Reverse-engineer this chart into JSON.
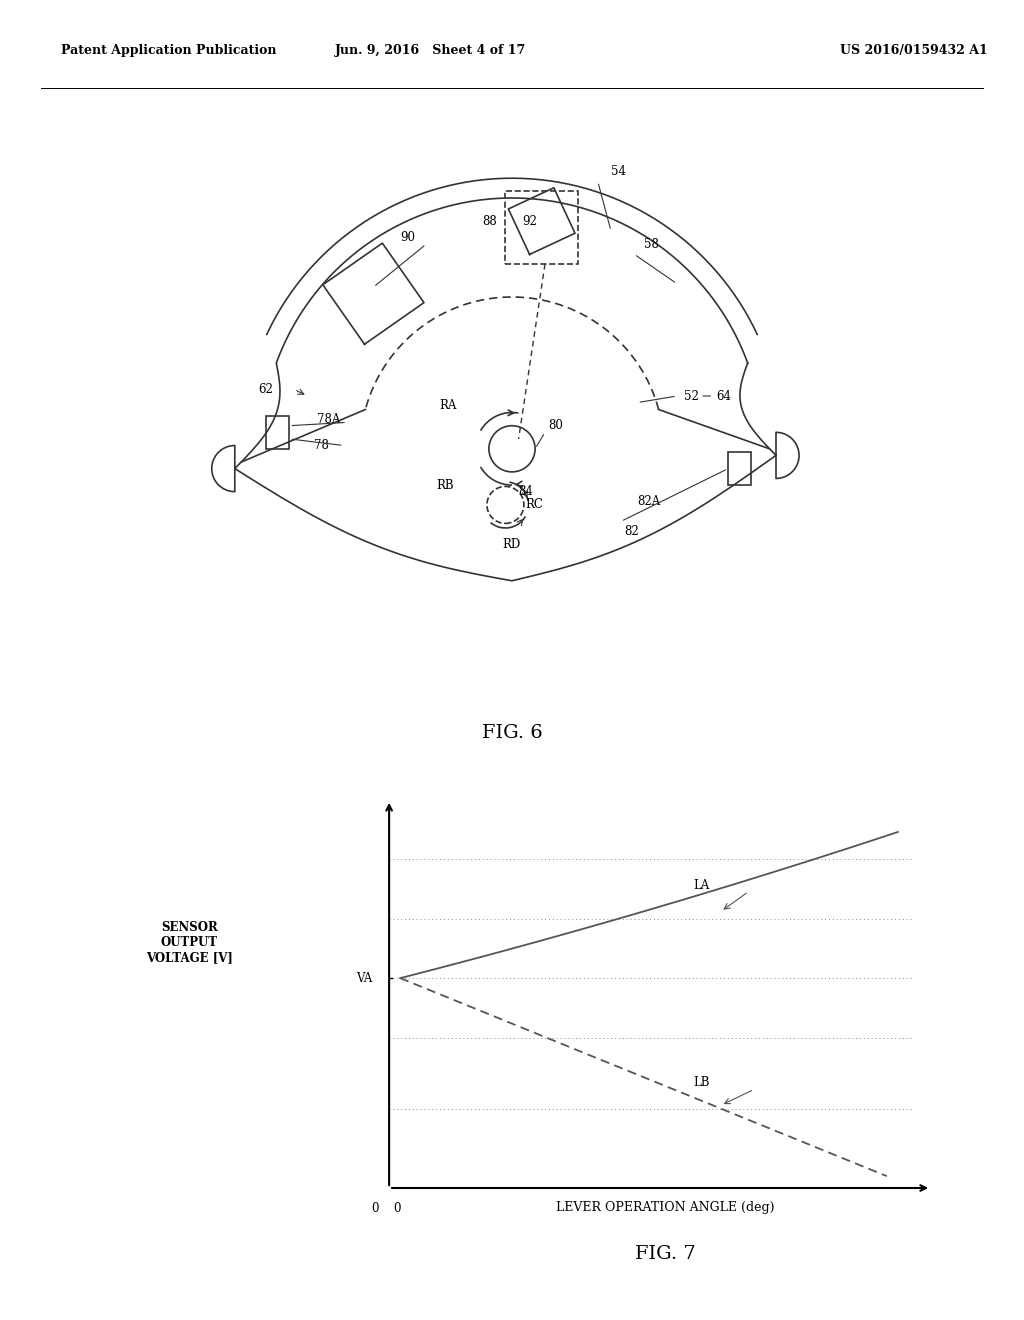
{
  "header_left": "Patent Application Publication",
  "header_mid": "Jun. 9, 2016   Sheet 4 of 17",
  "header_right": "US 2016/0159432 A1",
  "fig6_title": "FIG. 6",
  "fig7_title": "FIG. 7",
  "graph_ylabel": "SENSOR\nOUTPUT\nVOLTAGE [V]",
  "graph_xlabel": "LEVER OPERATION ANGLE (deg)",
  "graph_va_label": "VA",
  "graph_la_label": "LA",
  "graph_lb_label": "LB",
  "graph_zero_x": "0",
  "graph_zero_y": "0",
  "background_color": "#ffffff",
  "line_color": "#333333",
  "dotted_line_color": "#888888"
}
